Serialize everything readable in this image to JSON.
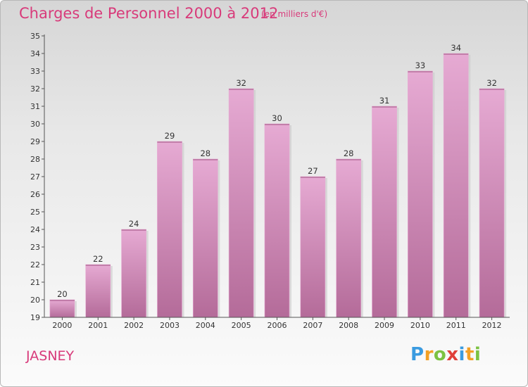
{
  "header": {
    "title": "Charges de Personnel 2000 à 2012",
    "subtitle": "(en milliers d'€)"
  },
  "footer": {
    "commune": "JASNEY",
    "logo": [
      "P",
      "r",
      "o",
      "x",
      "i",
      "t",
      "i"
    ],
    "logo_colors": [
      "#3a9be0",
      "#f2a024",
      "#7cc242",
      "#e0403a",
      "#3a9be0",
      "#f2a024",
      "#7cc242"
    ]
  },
  "colors": {
    "bar": "#d591ba",
    "bar_light": "#e6aad3",
    "bar_dark": "#b46b99",
    "accent": "#d83a7a"
  },
  "chart_data": {
    "type": "bar",
    "categories": [
      "2000",
      "2001",
      "2002",
      "2003",
      "2004",
      "2005",
      "2006",
      "2007",
      "2008",
      "2009",
      "2010",
      "2011",
      "2012"
    ],
    "values": [
      20,
      22,
      24,
      29,
      28,
      32,
      30,
      27,
      28,
      31,
      33,
      34,
      32
    ],
    "yticks": [
      19,
      20,
      21,
      22,
      23,
      24,
      25,
      26,
      27,
      28,
      29,
      30,
      31,
      32,
      33,
      34,
      35
    ],
    "ylim": [
      19,
      35
    ],
    "grid": false,
    "xlabel": "",
    "ylabel": ""
  }
}
